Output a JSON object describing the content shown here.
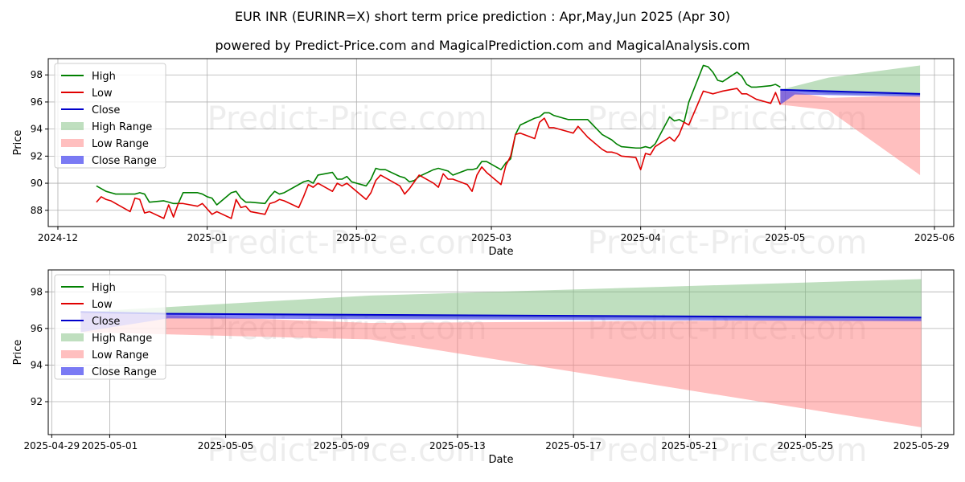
{
  "title": "EUR INR (EURINR=X) short term price prediction : Apr,May,Jun 2025 (Apr 30)",
  "subtitle": "powered by Predict-Price.com and MagicalPrediction.com and MagicalAnalysis.com",
  "watermark": "Predict-Price.com",
  "colors": {
    "high": "#008000",
    "low": "#e00000",
    "close": "#0000cc",
    "high_range": "#7fbf7f",
    "low_range": "#ff7f7f",
    "close_range": "#3333ee"
  },
  "legend": {
    "placement": "upper-left",
    "entries": [
      "High",
      "Low",
      "Close",
      "High Range",
      "Low Range",
      "Close Range"
    ]
  },
  "chart_data": [
    {
      "type": "line",
      "title": "EUR INR (EURINR=X) short term price prediction : Apr,May,Jun 2025 (Apr 30)",
      "xlabel": "Date",
      "ylabel": "Price",
      "x_axis": "date",
      "xlim": [
        "2024-11-29",
        "2025-06-05"
      ],
      "ylim": [
        86.8,
        99.2
      ],
      "xticks": [
        "2024-12-01",
        "2025-01-01",
        "2025-02-01",
        "2025-03-01",
        "2025-04-01",
        "2025-05-01",
        "2025-06-01"
      ],
      "xtick_labels": [
        "2024-12",
        "2025-01",
        "2025-02",
        "2025-03",
        "2025-04",
        "2025-05",
        "2025-06"
      ],
      "yticks": [
        88,
        90,
        92,
        94,
        96,
        98
      ],
      "grid": true,
      "series": [
        {
          "name": "High",
          "x": [
            "2024-12-09",
            "2024-12-10",
            "2024-12-11",
            "2024-12-12",
            "2024-12-13",
            "2024-12-16",
            "2024-12-17",
            "2024-12-18",
            "2024-12-19",
            "2024-12-20",
            "2024-12-23",
            "2024-12-24",
            "2024-12-25",
            "2024-12-26",
            "2024-12-27",
            "2024-12-30",
            "2024-12-31",
            "2025-01-01",
            "2025-01-02",
            "2025-01-03",
            "2025-01-06",
            "2025-01-07",
            "2025-01-08",
            "2025-01-09",
            "2025-01-10",
            "2025-01-13",
            "2025-01-14",
            "2025-01-15",
            "2025-01-16",
            "2025-01-17",
            "2025-01-20",
            "2025-01-21",
            "2025-01-22",
            "2025-01-23",
            "2025-01-24",
            "2025-01-27",
            "2025-01-28",
            "2025-01-29",
            "2025-01-30",
            "2025-01-31",
            "2025-02-03",
            "2025-02-04",
            "2025-02-05",
            "2025-02-06",
            "2025-02-07",
            "2025-02-10",
            "2025-02-11",
            "2025-02-12",
            "2025-02-13",
            "2025-02-14",
            "2025-02-17",
            "2025-02-18",
            "2025-02-19",
            "2025-02-20",
            "2025-02-21",
            "2025-02-24",
            "2025-02-25",
            "2025-02-26",
            "2025-02-27",
            "2025-02-28",
            "2025-03-03",
            "2025-03-04",
            "2025-03-05",
            "2025-03-06",
            "2025-03-07",
            "2025-03-10",
            "2025-03-11",
            "2025-03-12",
            "2025-03-13",
            "2025-03-14",
            "2025-03-17",
            "2025-03-18",
            "2025-03-19",
            "2025-03-20",
            "2025-03-21",
            "2025-03-24",
            "2025-03-25",
            "2025-03-26",
            "2025-03-27",
            "2025-03-28",
            "2025-03-31",
            "2025-04-01",
            "2025-04-02",
            "2025-04-03",
            "2025-04-04",
            "2025-04-07",
            "2025-04-08",
            "2025-04-09",
            "2025-04-10",
            "2025-04-11",
            "2025-04-14",
            "2025-04-15",
            "2025-04-16",
            "2025-04-17",
            "2025-04-18",
            "2025-04-21",
            "2025-04-22",
            "2025-04-23",
            "2025-04-24",
            "2025-04-25",
            "2025-04-28",
            "2025-04-29",
            "2025-04-30"
          ],
          "values": [
            89.8,
            89.6,
            89.4,
            89.3,
            89.2,
            89.2,
            89.2,
            89.3,
            89.2,
            88.6,
            88.7,
            88.6,
            88.5,
            88.5,
            89.3,
            89.3,
            89.2,
            89.0,
            88.9,
            88.4,
            89.3,
            89.4,
            88.9,
            88.6,
            88.6,
            88.5,
            89.0,
            89.4,
            89.2,
            89.3,
            89.9,
            90.1,
            90.2,
            90.0,
            90.6,
            90.8,
            90.3,
            90.3,
            90.5,
            90.1,
            89.8,
            90.3,
            91.1,
            91.0,
            91.0,
            90.5,
            90.4,
            90.1,
            90.2,
            90.5,
            91.0,
            91.1,
            91.0,
            90.9,
            90.6,
            91.0,
            91.0,
            91.1,
            91.6,
            91.6,
            91.0,
            91.5,
            91.8,
            93.6,
            94.3,
            94.8,
            94.9,
            95.2,
            95.2,
            95.0,
            94.7,
            94.7,
            94.7,
            94.7,
            94.7,
            93.6,
            93.4,
            93.2,
            92.9,
            92.7,
            92.6,
            92.6,
            92.7,
            92.6,
            92.9,
            94.9,
            94.6,
            94.7,
            94.5,
            96.0,
            98.7,
            98.6,
            98.2,
            97.6,
            97.5,
            98.2,
            97.9,
            97.3,
            97.1,
            97.1,
            97.2,
            97.3,
            97.1
          ]
        },
        {
          "name": "Low",
          "x": [
            "2024-12-09",
            "2024-12-10",
            "2024-12-11",
            "2024-12-12",
            "2024-12-13",
            "2024-12-16",
            "2024-12-17",
            "2024-12-18",
            "2024-12-19",
            "2024-12-20",
            "2024-12-23",
            "2024-12-24",
            "2024-12-25",
            "2024-12-26",
            "2024-12-27",
            "2024-12-30",
            "2024-12-31",
            "2025-01-01",
            "2025-01-02",
            "2025-01-03",
            "2025-01-06",
            "2025-01-07",
            "2025-01-08",
            "2025-01-09",
            "2025-01-10",
            "2025-01-13",
            "2025-01-14",
            "2025-01-15",
            "2025-01-16",
            "2025-01-17",
            "2025-01-20",
            "2025-01-21",
            "2025-01-22",
            "2025-01-23",
            "2025-01-24",
            "2025-01-27",
            "2025-01-28",
            "2025-01-29",
            "2025-01-30",
            "2025-01-31",
            "2025-02-03",
            "2025-02-04",
            "2025-02-05",
            "2025-02-06",
            "2025-02-07",
            "2025-02-10",
            "2025-02-11",
            "2025-02-12",
            "2025-02-13",
            "2025-02-14",
            "2025-02-17",
            "2025-02-18",
            "2025-02-19",
            "2025-02-20",
            "2025-02-21",
            "2025-02-24",
            "2025-02-25",
            "2025-02-26",
            "2025-02-27",
            "2025-02-28",
            "2025-03-03",
            "2025-03-04",
            "2025-03-05",
            "2025-03-06",
            "2025-03-07",
            "2025-03-10",
            "2025-03-11",
            "2025-03-12",
            "2025-03-13",
            "2025-03-14",
            "2025-03-17",
            "2025-03-18",
            "2025-03-19",
            "2025-03-20",
            "2025-03-21",
            "2025-03-24",
            "2025-03-25",
            "2025-03-26",
            "2025-03-27",
            "2025-03-28",
            "2025-03-31",
            "2025-04-01",
            "2025-04-02",
            "2025-04-03",
            "2025-04-04",
            "2025-04-07",
            "2025-04-08",
            "2025-04-09",
            "2025-04-10",
            "2025-04-11",
            "2025-04-14",
            "2025-04-15",
            "2025-04-16",
            "2025-04-17",
            "2025-04-18",
            "2025-04-21",
            "2025-04-22",
            "2025-04-23",
            "2025-04-24",
            "2025-04-25",
            "2025-04-28",
            "2025-04-29",
            "2025-04-30"
          ],
          "values": [
            88.6,
            89.0,
            88.8,
            88.7,
            88.5,
            87.9,
            88.9,
            88.8,
            87.8,
            87.9,
            87.4,
            88.4,
            87.5,
            88.5,
            88.5,
            88.3,
            88.5,
            88.1,
            87.7,
            87.9,
            87.4,
            88.8,
            88.2,
            88.3,
            87.9,
            87.7,
            88.5,
            88.6,
            88.8,
            88.7,
            88.2,
            89.0,
            89.9,
            89.7,
            90.0,
            89.4,
            90.0,
            89.8,
            90.0,
            89.7,
            88.8,
            89.3,
            90.2,
            90.6,
            90.4,
            89.8,
            89.2,
            89.6,
            90.1,
            90.6,
            90.0,
            89.7,
            90.7,
            90.3,
            90.3,
            89.9,
            89.4,
            90.6,
            91.2,
            90.8,
            89.9,
            91.3,
            92.0,
            93.6,
            93.7,
            93.3,
            94.5,
            94.8,
            94.1,
            94.1,
            93.8,
            93.7,
            94.2,
            93.8,
            93.4,
            92.5,
            92.3,
            92.3,
            92.2,
            92.0,
            91.9,
            91.0,
            92.2,
            92.1,
            92.7,
            93.4,
            93.1,
            93.6,
            94.5,
            94.3,
            96.8,
            96.7,
            96.6,
            96.7,
            96.8,
            97.0,
            96.6,
            96.6,
            96.4,
            96.2,
            95.9,
            96.7,
            95.8
          ]
        },
        {
          "name": "Close",
          "x": [
            "2025-04-30",
            "2025-05-29"
          ],
          "values": [
            96.9,
            96.6
          ]
        },
        {
          "name": "High Range",
          "kind": "band",
          "x": [
            "2025-04-30",
            "2025-05-10",
            "2025-05-29"
          ],
          "upper": [
            96.9,
            97.8,
            98.7
          ],
          "lower": [
            96.9,
            96.6,
            96.5
          ]
        },
        {
          "name": "Low Range",
          "kind": "band",
          "x": [
            "2025-04-30",
            "2025-05-10",
            "2025-05-29"
          ],
          "upper": [
            96.9,
            96.3,
            96.5
          ],
          "lower": [
            95.8,
            95.4,
            90.6
          ]
        },
        {
          "name": "Close Range",
          "kind": "band",
          "x": [
            "2025-04-30",
            "2025-05-03",
            "2025-05-29"
          ],
          "upper": [
            96.95,
            96.85,
            96.6
          ],
          "lower": [
            95.8,
            96.55,
            96.4
          ]
        }
      ]
    },
    {
      "type": "line",
      "xlabel": "Date",
      "ylabel": "Price",
      "x_axis": "date",
      "xlim": [
        "2025-04-28.88",
        "2025-05-30.12"
      ],
      "ylim": [
        90.2,
        99.2
      ],
      "xticks": [
        "2025-04-29",
        "2025-05-01",
        "2025-05-05",
        "2025-05-09",
        "2025-05-13",
        "2025-05-17",
        "2025-05-21",
        "2025-05-25",
        "2025-05-29"
      ],
      "xtick_labels": [
        "2025-04-29",
        "2025-05-01",
        "2025-05-05",
        "2025-05-09",
        "2025-05-13",
        "2025-05-17",
        "2025-05-21",
        "2025-05-25",
        "2025-05-29"
      ],
      "yticks": [
        92,
        94,
        96,
        98
      ],
      "grid": true,
      "series": [
        {
          "name": "Close",
          "x": [
            "2025-04-30",
            "2025-05-03",
            "2025-05-29"
          ],
          "values": [
            96.9,
            96.8,
            96.6
          ]
        },
        {
          "name": "High Range",
          "kind": "band",
          "x": [
            "2025-04-30",
            "2025-05-10",
            "2025-05-29"
          ],
          "upper": [
            96.9,
            97.8,
            98.7
          ],
          "lower": [
            96.9,
            96.6,
            96.5
          ]
        },
        {
          "name": "Low Range",
          "kind": "band",
          "x": [
            "2025-04-30",
            "2025-05-10",
            "2025-05-29"
          ],
          "upper": [
            96.9,
            96.3,
            96.5
          ],
          "lower": [
            95.8,
            95.4,
            90.6
          ]
        },
        {
          "name": "Close Range",
          "kind": "band",
          "x": [
            "2025-04-30",
            "2025-05-03",
            "2025-05-29"
          ],
          "upper": [
            96.95,
            96.85,
            96.6
          ],
          "lower": [
            95.8,
            96.55,
            96.4
          ]
        }
      ]
    }
  ]
}
